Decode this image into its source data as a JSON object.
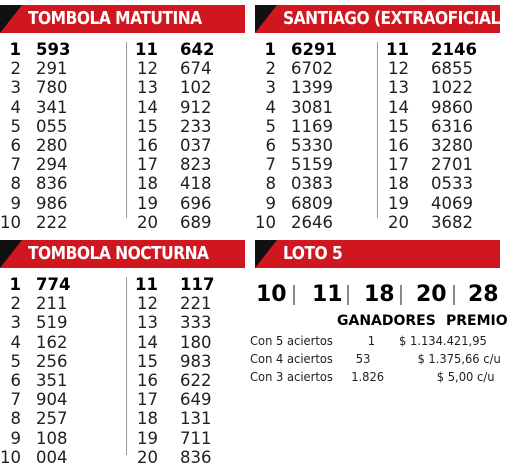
{
  "colors": {
    "header_red": "#d0161f",
    "header_dark": "#111111",
    "text": "#1f1f1f"
  },
  "matutina": {
    "title": "TOMBOLA MATUTINA",
    "left": [
      {
        "n": "1",
        "v": "593"
      },
      {
        "n": "2",
        "v": "291"
      },
      {
        "n": "3",
        "v": "780"
      },
      {
        "n": "4",
        "v": "341"
      },
      {
        "n": "5",
        "v": "055"
      },
      {
        "n": "6",
        "v": "280"
      },
      {
        "n": "7",
        "v": "294"
      },
      {
        "n": "8",
        "v": "836"
      },
      {
        "n": "9",
        "v": "986"
      },
      {
        "n": "10",
        "v": "222"
      }
    ],
    "right": [
      {
        "n": "11",
        "v": "642"
      },
      {
        "n": "12",
        "v": "674"
      },
      {
        "n": "13",
        "v": "102"
      },
      {
        "n": "14",
        "v": "912"
      },
      {
        "n": "15",
        "v": "233"
      },
      {
        "n": "16",
        "v": "037"
      },
      {
        "n": "17",
        "v": "823"
      },
      {
        "n": "18",
        "v": "418"
      },
      {
        "n": "19",
        "v": "696"
      },
      {
        "n": "20",
        "v": "689"
      }
    ]
  },
  "santiago": {
    "title": "SANTIAGO (EXTRAOFICIAL)",
    "left": [
      {
        "n": "1",
        "v": "6291"
      },
      {
        "n": "2",
        "v": "6702"
      },
      {
        "n": "3",
        "v": "1399"
      },
      {
        "n": "4",
        "v": "3081"
      },
      {
        "n": "5",
        "v": "1169"
      },
      {
        "n": "6",
        "v": "5330"
      },
      {
        "n": "7",
        "v": "5159"
      },
      {
        "n": "8",
        "v": "0383"
      },
      {
        "n": "9",
        "v": "6809"
      },
      {
        "n": "10",
        "v": "2646"
      }
    ],
    "right": [
      {
        "n": "11",
        "v": "2146"
      },
      {
        "n": "12",
        "v": "6855"
      },
      {
        "n": "13",
        "v": "1022"
      },
      {
        "n": "14",
        "v": "9860"
      },
      {
        "n": "15",
        "v": "6316"
      },
      {
        "n": "16",
        "v": "3280"
      },
      {
        "n": "17",
        "v": "2701"
      },
      {
        "n": "18",
        "v": "0533"
      },
      {
        "n": "19",
        "v": "4069"
      },
      {
        "n": "20",
        "v": "3682"
      }
    ]
  },
  "nocturna": {
    "title": "TOMBOLA NOCTURNA",
    "left": [
      {
        "n": "1",
        "v": "774"
      },
      {
        "n": "2",
        "v": "211"
      },
      {
        "n": "3",
        "v": "519"
      },
      {
        "n": "4",
        "v": "162"
      },
      {
        "n": "5",
        "v": "256"
      },
      {
        "n": "6",
        "v": "351"
      },
      {
        "n": "7",
        "v": "904"
      },
      {
        "n": "8",
        "v": "257"
      },
      {
        "n": "9",
        "v": "108"
      },
      {
        "n": "10",
        "v": "004"
      }
    ],
    "right": [
      {
        "n": "11",
        "v": "117"
      },
      {
        "n": "12",
        "v": "221"
      },
      {
        "n": "13",
        "v": "333"
      },
      {
        "n": "14",
        "v": "180"
      },
      {
        "n": "15",
        "v": "983"
      },
      {
        "n": "16",
        "v": "622"
      },
      {
        "n": "17",
        "v": "649"
      },
      {
        "n": "18",
        "v": "131"
      },
      {
        "n": "19",
        "v": "711"
      },
      {
        "n": "20",
        "v": "836"
      }
    ]
  },
  "loto5": {
    "title": "LOTO 5",
    "numbers": [
      "10",
      "11",
      "18",
      "20",
      "28"
    ],
    "header_winners": "GANADORES",
    "header_prize": "PREMIO",
    "rows": [
      {
        "label": "Con 5 aciertos",
        "winners": "1",
        "prize": "$ 1.134.421,95"
      },
      {
        "label": "Con 4 aciertos",
        "winners": "53",
        "prize": "$ 1.375,66 c/u"
      },
      {
        "label": "Con 3 aciertos",
        "winners": "1.826",
        "prize": "$ 5,00 c/u"
      }
    ]
  }
}
